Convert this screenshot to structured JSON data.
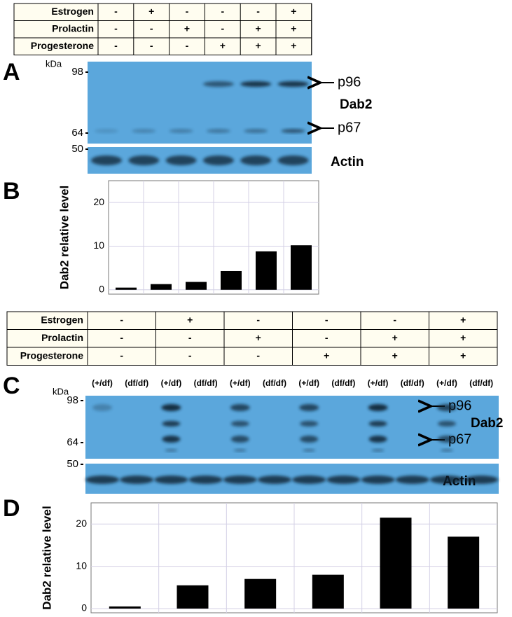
{
  "panels": [
    "A",
    "B",
    "C",
    "D"
  ],
  "table_top": {
    "rows": [
      {
        "label": "Estrogen",
        "cells": [
          "-",
          "+",
          "-",
          "-",
          "-",
          "+"
        ]
      },
      {
        "label": "Prolactin",
        "cells": [
          "-",
          "-",
          "+",
          "-",
          "+",
          "+"
        ]
      },
      {
        "label": "Progesterone",
        "cells": [
          "-",
          "-",
          "-",
          "+",
          "+",
          "+"
        ]
      }
    ]
  },
  "blot_a": {
    "unit": "kDa",
    "markers": [
      98,
      64,
      50
    ],
    "bands": [
      "p96",
      "p67"
    ],
    "protein": "Dab2",
    "control": "Actin"
  },
  "table_bottom": {
    "rows": [
      {
        "label": "Estrogen",
        "cells": [
          "-",
          "+",
          "-",
          "-",
          "-",
          "+"
        ]
      },
      {
        "label": "Prolactin",
        "cells": [
          "-",
          "-",
          "+",
          "-",
          "+",
          "+"
        ]
      },
      {
        "label": "Progesterone",
        "cells": [
          "-",
          "-",
          "-",
          "+",
          "+",
          "+"
        ]
      }
    ]
  },
  "blot_c": {
    "unit": "kDa",
    "markers": [
      98,
      64,
      50
    ],
    "bands": [
      "p96",
      "p67"
    ],
    "protein": "Dab2",
    "control": "Actin",
    "lanes": [
      "(+/df)",
      "(df/df)",
      "(+/df)",
      "(df/df)",
      "(+/df)",
      "(df/df)",
      "(+/df)",
      "(df/df)",
      "(+/df)",
      "(df/df)",
      "(+/df)",
      "(df/df)"
    ]
  },
  "chart_data": [
    {
      "type": "bar",
      "y_label": "Dab2 relative level",
      "values": [
        0.5,
        1.3,
        1.8,
        4.3,
        8.8,
        10.2
      ],
      "color": "#000000",
      "ylim": [
        -1,
        25
      ],
      "yticks": [
        0,
        10,
        20
      ],
      "grid": true
    },
    {
      "type": "bar",
      "y_label": "Dab2 relative level",
      "values": [
        0.5,
        5.5,
        7,
        8,
        21.5,
        17
      ],
      "color": "#000000",
      "ylim": [
        -1,
        25
      ],
      "yticks": [
        0,
        10,
        20
      ],
      "grid": true
    }
  ]
}
